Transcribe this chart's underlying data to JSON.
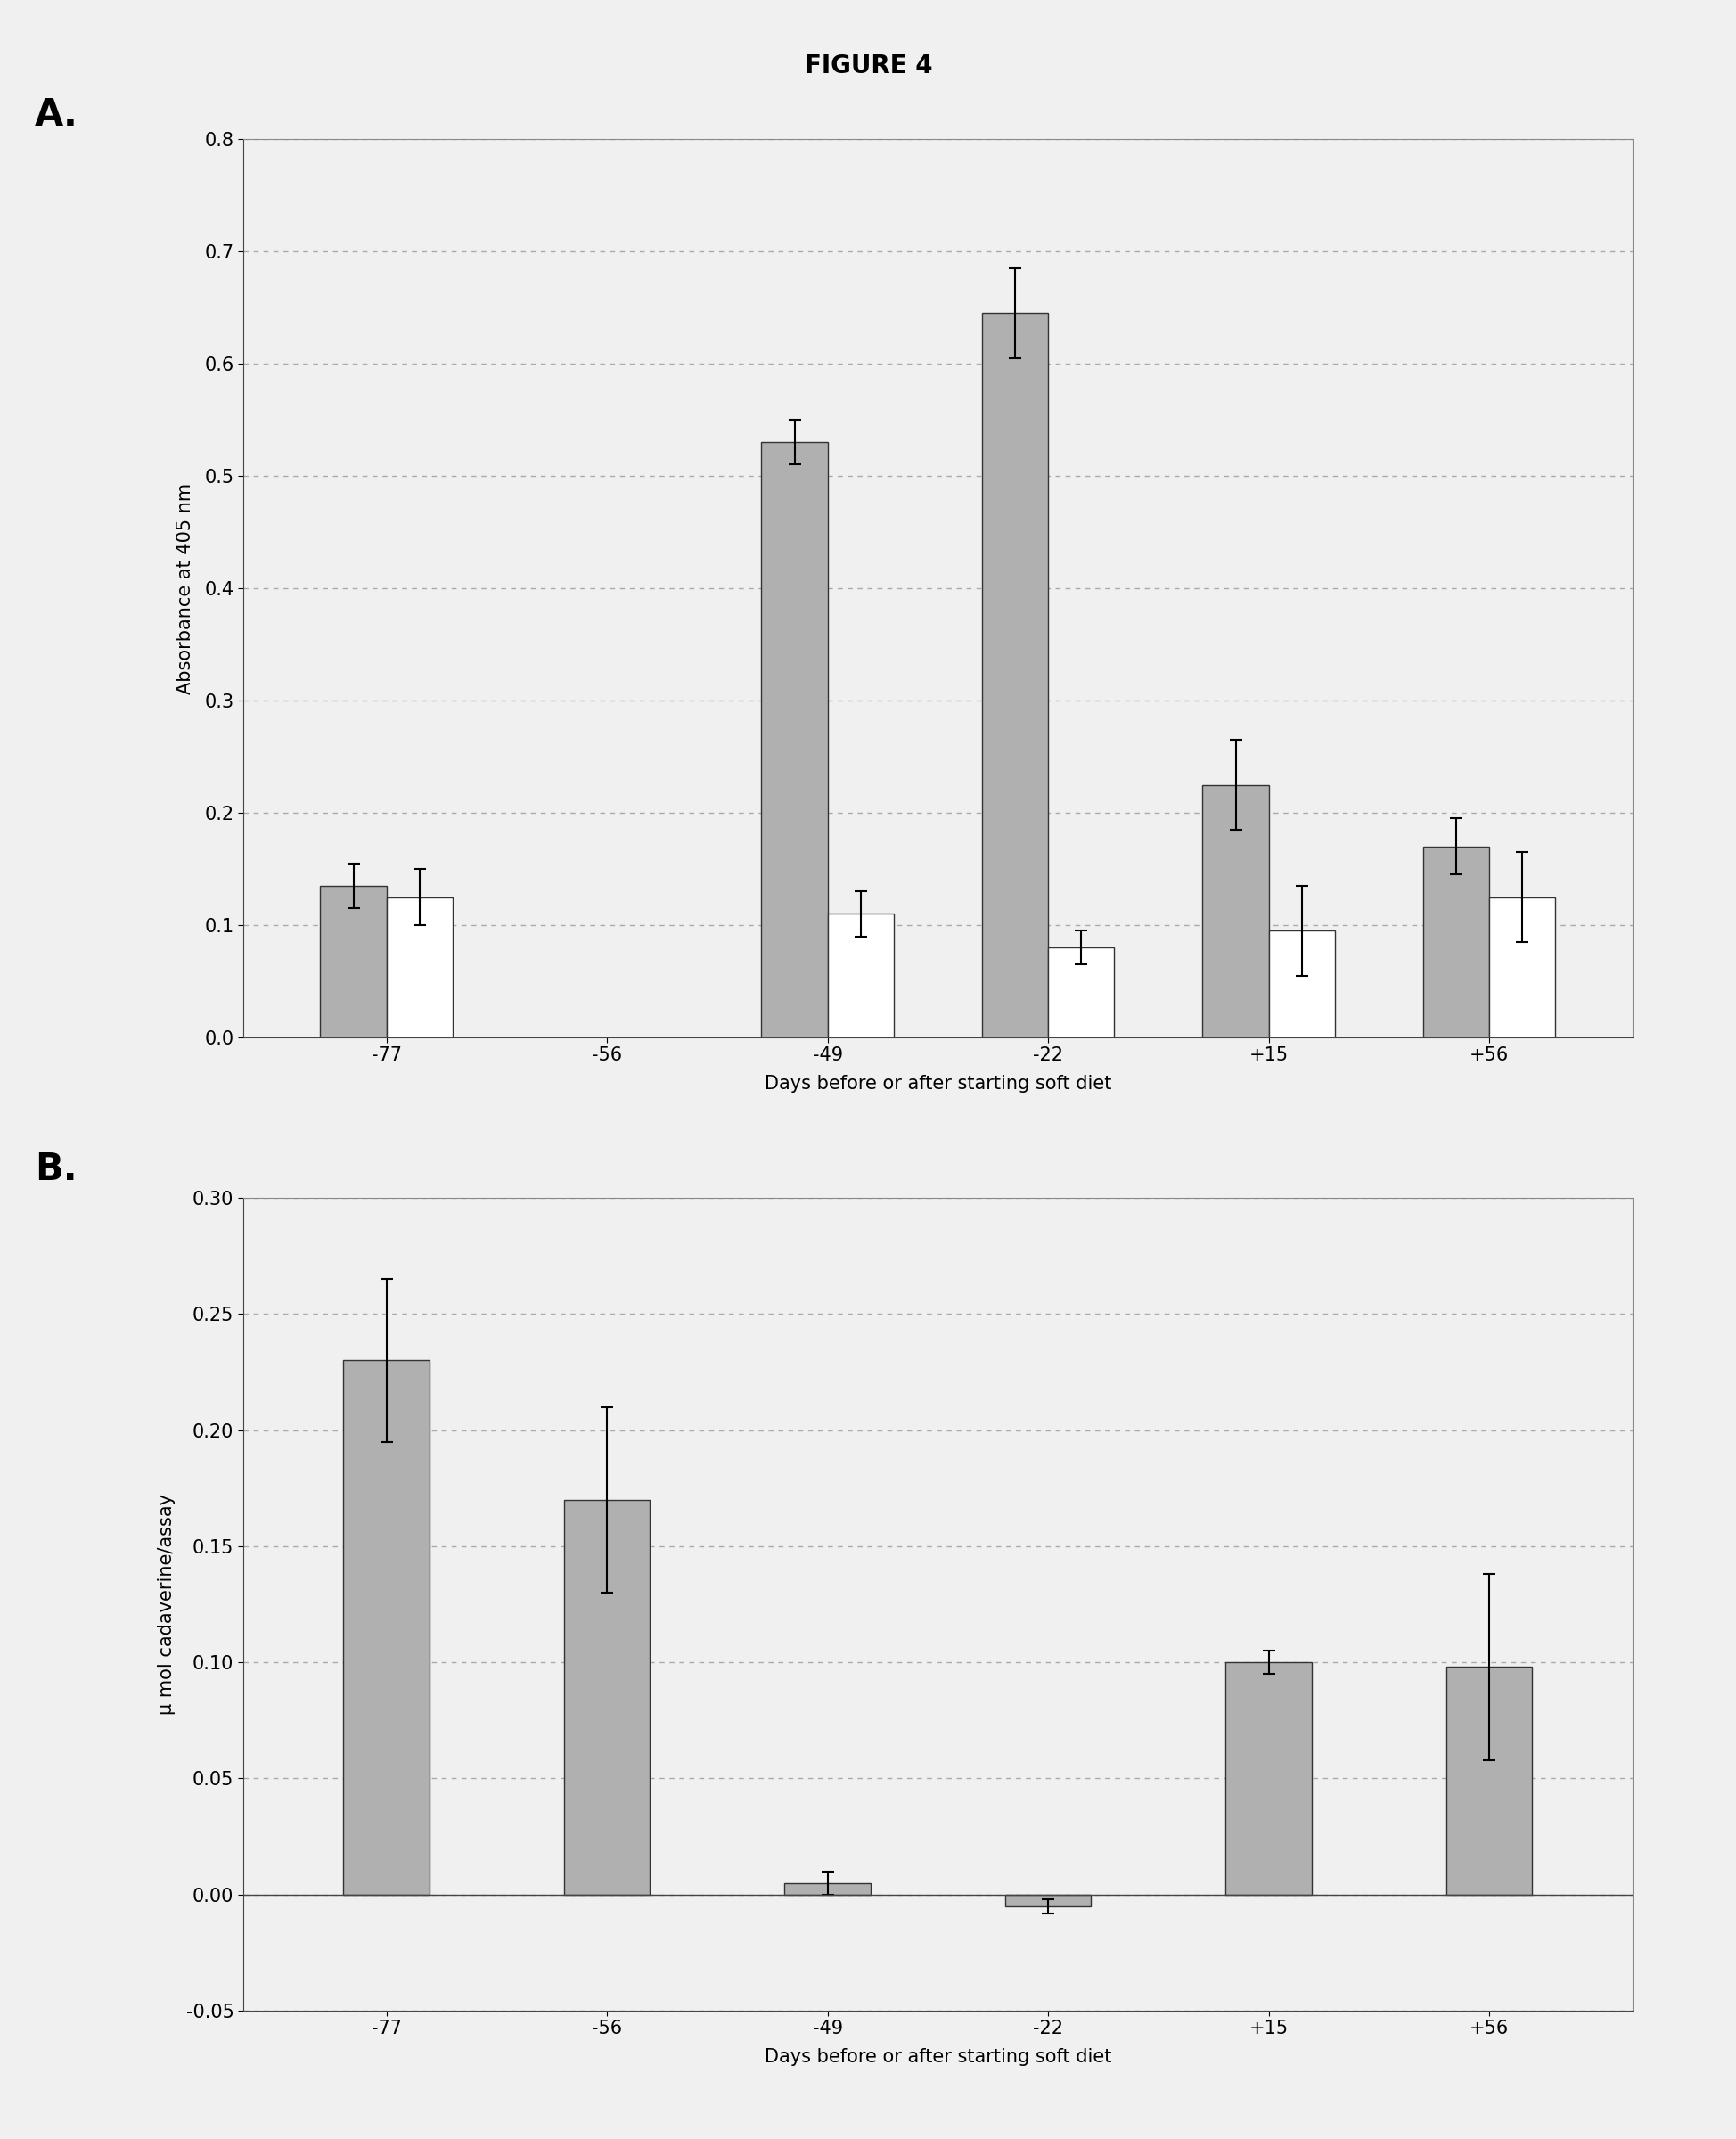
{
  "title": "FIGURE 4",
  "panel_A": {
    "label": "A.",
    "categories": [
      "-77",
      "-56",
      "-49",
      "-22",
      "+15",
      "+56"
    ],
    "dark_values": [
      0.135,
      0.0,
      0.53,
      0.645,
      0.225,
      0.17
    ],
    "light_values": [
      0.125,
      0.0,
      0.11,
      0.08,
      0.095,
      0.125
    ],
    "dark_errors": [
      0.02,
      0.0,
      0.02,
      0.04,
      0.04,
      0.025
    ],
    "light_errors": [
      0.025,
      0.0,
      0.02,
      0.015,
      0.04,
      0.04
    ],
    "has_dark": [
      true,
      false,
      true,
      true,
      true,
      true
    ],
    "has_light": [
      true,
      false,
      true,
      true,
      true,
      true
    ],
    "ylabel": "Absorbance at 405 nm",
    "xlabel": "Days before or after starting soft diet",
    "ylim": [
      0.0,
      0.8
    ],
    "yticks": [
      0.0,
      0.1,
      0.2,
      0.3,
      0.4,
      0.5,
      0.6,
      0.7,
      0.8
    ]
  },
  "panel_B": {
    "label": "B.",
    "categories": [
      "-77",
      "-56",
      "-49",
      "-22",
      "+15",
      "+56"
    ],
    "dark_values": [
      0.23,
      0.17,
      0.005,
      -0.005,
      0.1,
      0.098
    ],
    "dark_errors": [
      0.035,
      0.04,
      0.005,
      0.003,
      0.005,
      0.04
    ],
    "ylabel": "μ mol cadaverine/assay",
    "xlabel": "Days before or after starting soft diet",
    "ylim": [
      -0.05,
      0.3
    ],
    "yticks": [
      -0.05,
      0.0,
      0.05,
      0.1,
      0.15,
      0.2,
      0.25,
      0.3
    ]
  },
  "dark_color": "#b0b0b0",
  "light_color": "#ffffff",
  "bar_edgecolor": "#333333",
  "bar_width": 0.3,
  "grid_color": "#aaaaaa",
  "background_color": "#f0f0f0",
  "plot_bg_color": "#f0f0f0"
}
